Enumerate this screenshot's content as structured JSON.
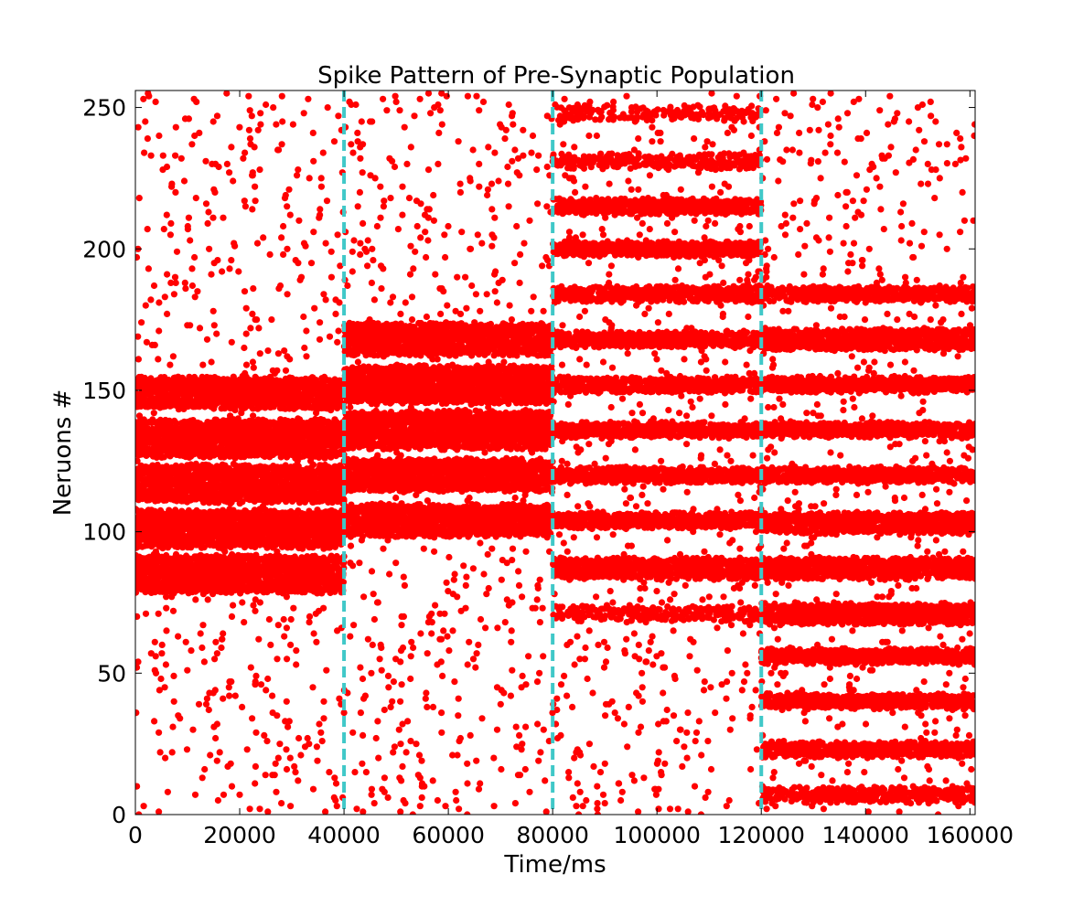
{
  "chart_data": {
    "type": "scatter",
    "title": "Spike Pattern of Pre-Synaptic Population",
    "xlabel": "Time/ms",
    "ylabel": "Neruons #",
    "xlim": [
      0,
      161000
    ],
    "ylim": [
      0,
      256
    ],
    "x_ticks": [
      0,
      20000,
      40000,
      60000,
      80000,
      100000,
      120000,
      140000,
      160000
    ],
    "y_ticks": [
      0,
      50,
      100,
      150,
      200,
      250
    ],
    "grid": false,
    "legend": "none",
    "marker_color": "#ff0000",
    "boundary_color": "#40c8c8",
    "boundaries": [
      40000,
      80000,
      120000
    ],
    "background_rate": 0.06,
    "phases": [
      {
        "start": 0,
        "end": 40000,
        "bands": [
          {
            "center": 149,
            "halfwidth": 5
          },
          {
            "center": 133,
            "halfwidth": 6
          },
          {
            "center": 117,
            "halfwidth": 6
          },
          {
            "center": 101,
            "halfwidth": 6
          },
          {
            "center": 85,
            "halfwidth": 6
          }
        ]
      },
      {
        "start": 40000,
        "end": 80000,
        "bands": [
          {
            "center": 168,
            "halfwidth": 5
          },
          {
            "center": 152,
            "halfwidth": 6
          },
          {
            "center": 136,
            "halfwidth": 6
          },
          {
            "center": 120,
            "halfwidth": 5
          },
          {
            "center": 104,
            "halfwidth": 5
          }
        ]
      },
      {
        "start": 80000,
        "end": 120000,
        "bands": [
          {
            "center": 248,
            "halfwidth": 2,
            "density": 0.4
          },
          {
            "center": 231,
            "halfwidth": 2,
            "density": 0.6
          },
          {
            "center": 215,
            "halfwidth": 2
          },
          {
            "center": 200,
            "halfwidth": 2
          },
          {
            "center": 184,
            "halfwidth": 2
          },
          {
            "center": 168,
            "halfwidth": 2
          },
          {
            "center": 152,
            "halfwidth": 2
          },
          {
            "center": 136,
            "halfwidth": 2
          },
          {
            "center": 120,
            "halfwidth": 2
          },
          {
            "center": 104,
            "halfwidth": 2
          },
          {
            "center": 87,
            "halfwidth": 3
          },
          {
            "center": 71,
            "halfwidth": 2,
            "density": 0.6
          }
        ]
      },
      {
        "start": 120000,
        "end": 161000,
        "bands": [
          {
            "center": 184,
            "halfwidth": 2
          },
          {
            "center": 168,
            "halfwidth": 3
          },
          {
            "center": 152,
            "halfwidth": 2
          },
          {
            "center": 136,
            "halfwidth": 2
          },
          {
            "center": 120,
            "halfwidth": 2
          },
          {
            "center": 103,
            "halfwidth": 3
          },
          {
            "center": 87,
            "halfwidth": 3
          },
          {
            "center": 71,
            "halfwidth": 3
          },
          {
            "center": 56,
            "halfwidth": 2
          },
          {
            "center": 40,
            "halfwidth": 2
          },
          {
            "center": 23,
            "halfwidth": 2
          },
          {
            "center": 7,
            "halfwidth": 2,
            "density": 0.7
          },
          {
            "center": 231,
            "halfwidth": 0,
            "density": 0.1
          }
        ]
      }
    ]
  }
}
